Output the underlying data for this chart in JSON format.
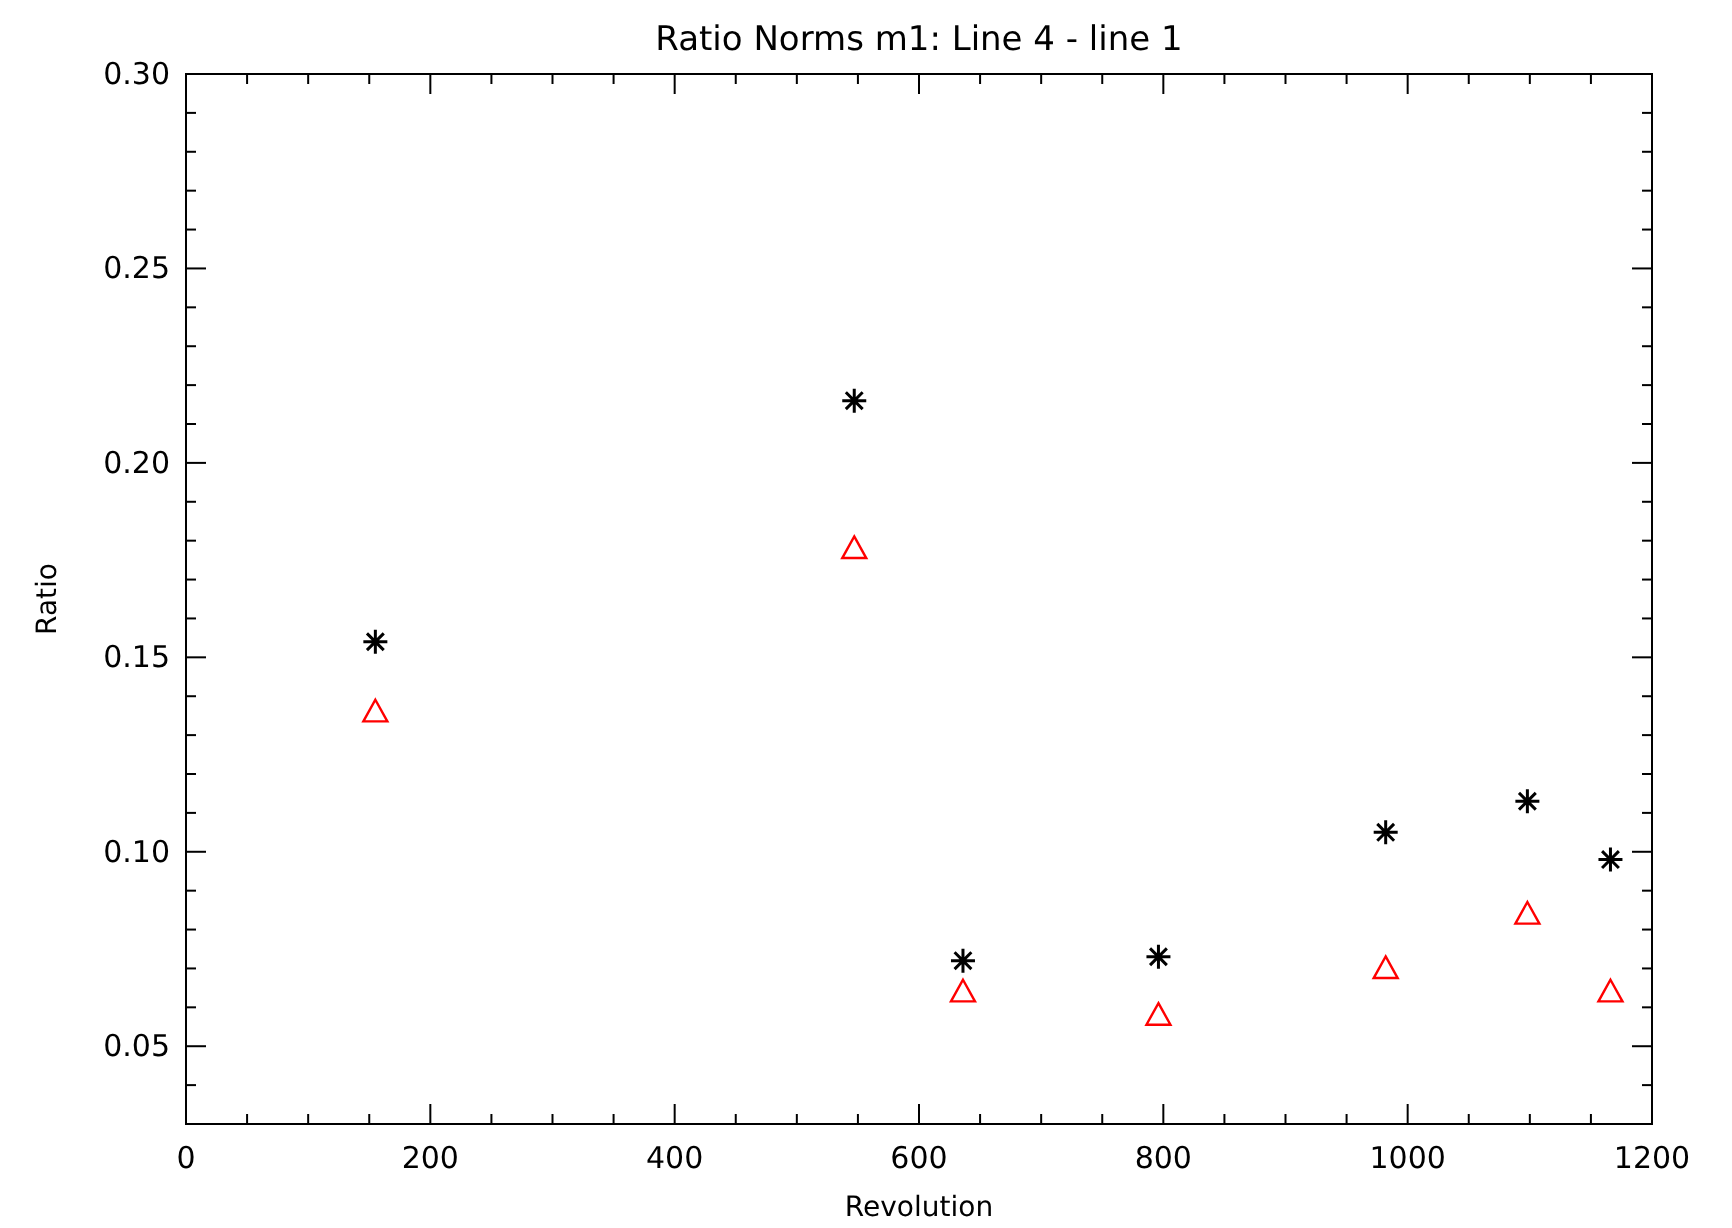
{
  "chart_data": {
    "type": "scatter",
    "title": "Ratio Norms m1: Line 4 - line 1",
    "xlabel": "Revolution",
    "ylabel": "Ratio",
    "xlim": [
      0,
      1200
    ],
    "ylim": [
      0.03,
      0.3
    ],
    "xticks": [
      0,
      {
        "value": 50,
        "label": null
      },
      {
        "value": 100,
        "label": null
      },
      {
        "value": 150,
        "label": null
      },
      200,
      {
        "value": 250,
        "label": null
      },
      {
        "value": 300,
        "label": null
      },
      {
        "value": 350,
        "label": null
      },
      400,
      {
        "value": 450,
        "label": null
      },
      {
        "value": 500,
        "label": null
      },
      {
        "value": 550,
        "label": null
      },
      600,
      {
        "value": 650,
        "label": null
      },
      {
        "value": 700,
        "label": null
      },
      {
        "value": 750,
        "label": null
      },
      800,
      {
        "value": 850,
        "label": null
      },
      {
        "value": 900,
        "label": null
      },
      {
        "value": 950,
        "label": null
      },
      1000,
      {
        "value": 1050,
        "label": null
      },
      {
        "value": 1100,
        "label": null
      },
      {
        "value": 1150,
        "label": null
      },
      1200
    ],
    "yticks": [
      {
        "value": 0.04,
        "label": null
      },
      {
        "value": 0.05,
        "label": "0.05"
      },
      {
        "value": 0.06,
        "label": null
      },
      {
        "value": 0.07,
        "label": null
      },
      {
        "value": 0.08,
        "label": null
      },
      {
        "value": 0.09,
        "label": null
      },
      {
        "value": 0.1,
        "label": "0.10"
      },
      {
        "value": 0.11,
        "label": null
      },
      {
        "value": 0.12,
        "label": null
      },
      {
        "value": 0.13,
        "label": null
      },
      {
        "value": 0.14,
        "label": null
      },
      {
        "value": 0.15,
        "label": "0.15"
      },
      {
        "value": 0.16,
        "label": null
      },
      {
        "value": 0.17,
        "label": null
      },
      {
        "value": 0.18,
        "label": null
      },
      {
        "value": 0.19,
        "label": null
      },
      {
        "value": 0.2,
        "label": "0.20"
      },
      {
        "value": 0.21,
        "label": null
      },
      {
        "value": 0.22,
        "label": null
      },
      {
        "value": 0.23,
        "label": null
      },
      {
        "value": 0.24,
        "label": null
      },
      {
        "value": 0.25,
        "label": "0.25"
      },
      {
        "value": 0.26,
        "label": null
      },
      {
        "value": 0.27,
        "label": null
      },
      {
        "value": 0.28,
        "label": null
      },
      {
        "value": 0.29,
        "label": null
      },
      {
        "value": 0.3,
        "label": "0.30"
      }
    ],
    "grid": false,
    "series": [
      {
        "color": "#000000",
        "marker": "cross",
        "x": [
          155,
          547,
          636,
          796,
          982,
          1098,
          1166
        ],
        "values": [
          0.154,
          0.216,
          0.072,
          0.073,
          0.105,
          0.113,
          0.098
        ]
      },
      {
        "color": "#ff0000",
        "marker": "triangle",
        "x": [
          155,
          547,
          636,
          796,
          982,
          1098,
          1166
        ],
        "values": [
          0.136,
          0.178,
          0.064,
          0.058,
          0.07,
          0.084,
          0.064
        ]
      }
    ]
  }
}
